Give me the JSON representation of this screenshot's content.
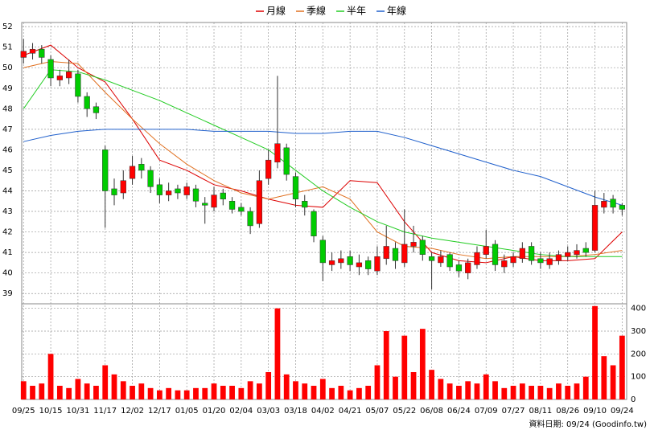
{
  "chart_data": {
    "type": "candlestick",
    "source": "資料日期: 09/24 (Goodinfo.tw)",
    "up_color": "#ff0000",
    "down_color": "#00cc00",
    "grid": true,
    "xlim": [
      -0.2,
      66.5
    ],
    "xticks": [
      {
        "value": 0,
        "label": "09/25"
      },
      {
        "value": 3,
        "label": "10/15"
      },
      {
        "value": 6,
        "label": "10/31"
      },
      {
        "value": 9,
        "label": "11/17"
      },
      {
        "value": 12,
        "label": "12/02"
      },
      {
        "value": 15,
        "label": "12/17"
      },
      {
        "value": 18,
        "label": "01/05"
      },
      {
        "value": 21,
        "label": "01/20"
      },
      {
        "value": 24,
        "label": "02/04"
      },
      {
        "value": 27,
        "label": "03/03"
      },
      {
        "value": 30,
        "label": "03/18"
      },
      {
        "value": 33,
        "label": "04/02"
      },
      {
        "value": 36,
        "label": "04/21"
      },
      {
        "value": 39,
        "label": "05/07"
      },
      {
        "value": 42,
        "label": "05/22"
      },
      {
        "value": 45,
        "label": "06/08"
      },
      {
        "value": 48,
        "label": "06/24"
      },
      {
        "value": 51,
        "label": "07/09"
      },
      {
        "value": 54,
        "label": "07/27"
      },
      {
        "value": 57,
        "label": "08/11"
      },
      {
        "value": 60,
        "label": "08/26"
      },
      {
        "value": 63,
        "label": "09/10"
      },
      {
        "value": 66,
        "label": "09/24"
      }
    ],
    "ylim": [
      38.5,
      52.2
    ],
    "yticks": [
      39,
      40,
      41,
      42,
      43,
      44,
      45,
      46,
      47,
      48,
      49,
      50,
      51,
      52
    ],
    "open": [
      50.5,
      50.7,
      50.9,
      50.4,
      49.4,
      49.5,
      49.7,
      48.6,
      48.1,
      46.0,
      44.1,
      43.9,
      44.6,
      45.3,
      45.0,
      44.3,
      43.8,
      44.1,
      43.8,
      44.1,
      43.4,
      43.2,
      43.9,
      43.5,
      43.2,
      43.0,
      42.4,
      44.6,
      45.4,
      46.1,
      44.7,
      43.5,
      43.0,
      41.6,
      40.4,
      40.5,
      40.8,
      40.3,
      40.6,
      40.1,
      40.7,
      41.2,
      40.5,
      41.3,
      41.6,
      40.8,
      40.5,
      40.9,
      40.4,
      40.0,
      40.4,
      40.9,
      41.4,
      40.3,
      40.5,
      40.7,
      41.3,
      40.7,
      40.4,
      40.6,
      40.8,
      40.9,
      41.2,
      41.1,
      43.2,
      43.6,
      43.3
    ],
    "high": [
      51.4,
      51.2,
      51.1,
      50.6,
      49.9,
      50.4,
      49.9,
      48.8,
      48.3,
      46.2,
      44.6,
      45.0,
      45.7,
      45.6,
      45.2,
      44.6,
      44.4,
      44.3,
      44.4,
      44.3,
      43.7,
      44.2,
      44.1,
      43.7,
      43.4,
      43.2,
      45.0,
      46.0,
      49.6,
      46.3,
      44.9,
      43.8,
      43.1,
      41.8,
      41.0,
      41.1,
      41.1,
      40.9,
      40.8,
      41.3,
      42.3,
      41.5,
      43.1,
      42.3,
      41.8,
      41.0,
      41.1,
      41.0,
      40.6,
      40.7,
      41.3,
      42.1,
      41.6,
      40.9,
      41.0,
      41.5,
      41.5,
      41.0,
      41.0,
      41.1,
      41.3,
      41.4,
      41.5,
      44.0,
      43.9,
      43.8,
      43.4
    ],
    "low": [
      50.2,
      50.4,
      50.2,
      49.1,
      49.1,
      49.2,
      48.3,
      47.6,
      47.5,
      42.2,
      43.3,
      43.6,
      44.3,
      44.6,
      43.9,
      43.4,
      43.5,
      43.6,
      43.6,
      43.2,
      42.4,
      43.0,
      43.3,
      42.9,
      42.8,
      41.9,
      42.2,
      44.3,
      45.1,
      44.5,
      43.2,
      42.8,
      41.5,
      39.6,
      40.1,
      40.2,
      40.1,
      39.9,
      39.9,
      39.9,
      40.4,
      40.2,
      40.3,
      41.0,
      40.6,
      39.2,
      40.3,
      40.1,
      39.8,
      39.7,
      40.2,
      40.7,
      40.1,
      40.0,
      40.3,
      40.5,
      40.4,
      40.2,
      40.2,
      40.4,
      40.6,
      40.7,
      40.8,
      41.0,
      42.9,
      42.9,
      42.8
    ],
    "close": [
      50.8,
      50.9,
      50.5,
      49.5,
      49.6,
      49.8,
      48.6,
      48.0,
      47.8,
      44.0,
      43.8,
      44.5,
      45.2,
      45.0,
      44.2,
      43.8,
      44.0,
      43.9,
      44.2,
      43.5,
      43.3,
      43.8,
      43.6,
      43.1,
      43.0,
      42.3,
      44.5,
      45.5,
      46.3,
      44.8,
      43.6,
      43.2,
      41.8,
      40.5,
      40.6,
      40.7,
      40.4,
      40.5,
      40.2,
      40.8,
      41.3,
      40.6,
      41.4,
      41.5,
      40.9,
      40.6,
      40.8,
      40.3,
      40.1,
      40.5,
      41.0,
      41.3,
      40.4,
      40.6,
      40.8,
      41.2,
      40.6,
      40.5,
      40.7,
      40.9,
      41.0,
      41.1,
      41.0,
      43.3,
      43.5,
      43.2,
      43.1
    ],
    "series": [
      {
        "name": "月線",
        "color": "#dd0000",
        "x": [
          0,
          3,
          6,
          9,
          12,
          15,
          18,
          21,
          24,
          27,
          30,
          33,
          36,
          39,
          42,
          45,
          48,
          51,
          54,
          57,
          60,
          63,
          66
        ],
        "values": [
          50.6,
          51.1,
          50.0,
          49.3,
          47.5,
          45.5,
          45.0,
          44.3,
          44.0,
          43.6,
          43.3,
          43.2,
          44.5,
          44.4,
          42.5,
          41.0,
          40.6,
          40.5,
          40.8,
          40.6,
          40.6,
          40.7,
          42.0
        ]
      },
      {
        "name": "季線",
        "color": "#e07020",
        "x": [
          0,
          3,
          6,
          9,
          12,
          15,
          18,
          21,
          24,
          27,
          30,
          33,
          36,
          39,
          42,
          45,
          48,
          51,
          54,
          57,
          60,
          63,
          66
        ],
        "values": [
          50.0,
          50.3,
          50.2,
          48.8,
          47.5,
          46.3,
          45.3,
          44.5,
          43.9,
          43.6,
          43.9,
          44.2,
          43.6,
          42.0,
          41.3,
          41.2,
          40.9,
          40.7,
          40.8,
          40.8,
          40.8,
          40.9,
          41.1
        ]
      },
      {
        "name": "半年",
        "color": "#22cc22",
        "x": [
          0,
          3,
          6,
          9,
          12,
          15,
          18,
          21,
          24,
          27,
          30,
          33,
          36,
          39,
          42,
          45,
          48,
          51,
          54,
          57,
          60,
          63,
          66
        ],
        "values": [
          48.0,
          49.9,
          49.8,
          49.4,
          48.9,
          48.4,
          47.8,
          47.2,
          46.6,
          46.0,
          45.0,
          44.0,
          43.2,
          42.5,
          42.0,
          41.7,
          41.5,
          41.3,
          41.1,
          40.9,
          40.8,
          40.8,
          40.8
        ]
      },
      {
        "name": "年線",
        "color": "#2060cc",
        "x": [
          0,
          3,
          6,
          9,
          12,
          15,
          18,
          21,
          24,
          27,
          30,
          33,
          36,
          39,
          42,
          45,
          48,
          51,
          54,
          57,
          60,
          63,
          66
        ],
        "values": [
          46.4,
          46.7,
          46.9,
          47.0,
          47.0,
          47.0,
          47.0,
          46.9,
          46.9,
          46.9,
          46.8,
          46.8,
          46.9,
          46.9,
          46.6,
          46.2,
          45.8,
          45.4,
          45.0,
          44.7,
          44.2,
          43.7,
          43.3
        ]
      }
    ],
    "volume": {
      "color": "#ff0000",
      "ylim": [
        0,
        420
      ],
      "yticks": [
        0,
        100,
        200,
        300,
        400
      ],
      "values": [
        80,
        60,
        70,
        200,
        60,
        50,
        90,
        70,
        60,
        150,
        110,
        80,
        60,
        70,
        50,
        40,
        50,
        40,
        40,
        50,
        50,
        70,
        60,
        60,
        50,
        80,
        70,
        120,
        400,
        110,
        80,
        70,
        60,
        90,
        50,
        60,
        40,
        50,
        60,
        150,
        300,
        100,
        280,
        120,
        310,
        130,
        90,
        70,
        60,
        80,
        70,
        110,
        80,
        50,
        60,
        70,
        60,
        60,
        50,
        70,
        60,
        70,
        100,
        410,
        190,
        150,
        280
      ]
    }
  }
}
